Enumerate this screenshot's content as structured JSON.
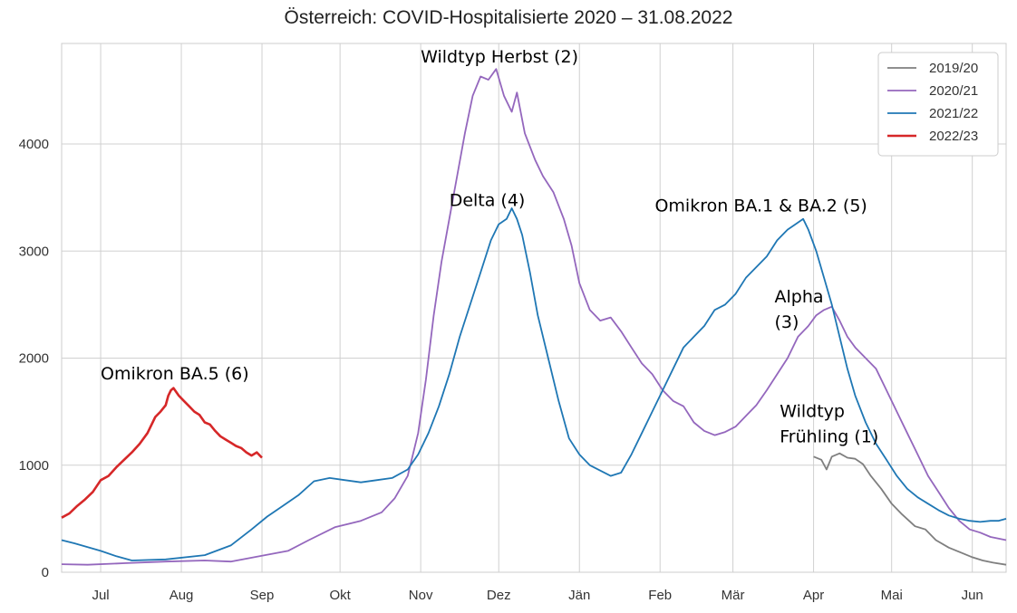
{
  "chart_data": {
    "type": "line",
    "title": "Österreich: COVID-Hospitalisierte 2020 – 31.08.2022",
    "xlabel": "",
    "ylabel": "",
    "x_domain_day": [
      -15,
      348
    ],
    "ylim": [
      0,
      5000
    ],
    "y_ticks": [
      0,
      1000,
      2000,
      3000,
      4000
    ],
    "x_ticks": [
      {
        "label": "Jul",
        "day": 0
      },
      {
        "label": "Aug",
        "day": 31
      },
      {
        "label": "Sep",
        "day": 62
      },
      {
        "label": "Okt",
        "day": 92
      },
      {
        "label": "Nov",
        "day": 123
      },
      {
        "label": "Dez",
        "day": 153
      },
      {
        "label": "Jän",
        "day": 184
      },
      {
        "label": "Feb",
        "day": 215
      },
      {
        "label": "Mär",
        "day": 243
      },
      {
        "label": "Apr",
        "day": 274
      },
      {
        "label": "Mai",
        "day": 304
      },
      {
        "label": "Jun",
        "day": 335
      }
    ],
    "grid": true,
    "legend_position": "top-right",
    "series": [
      {
        "name": "2019/20",
        "color": "#7f7f7f",
        "points": [
          [
            274,
            1080
          ],
          [
            277,
            1050
          ],
          [
            279,
            960
          ],
          [
            281,
            1080
          ],
          [
            284,
            1110
          ],
          [
            287,
            1070
          ],
          [
            290,
            1060
          ],
          [
            293,
            1010
          ],
          [
            296,
            900
          ],
          [
            300,
            780
          ],
          [
            304,
            640
          ],
          [
            308,
            540
          ],
          [
            313,
            430
          ],
          [
            317,
            400
          ],
          [
            321,
            300
          ],
          [
            326,
            230
          ],
          [
            331,
            180
          ],
          [
            335,
            140
          ],
          [
            339,
            110
          ],
          [
            343,
            90
          ],
          [
            348,
            70
          ]
        ]
      },
      {
        "name": "2020/21",
        "color": "#9467bd",
        "points": [
          [
            -15,
            75
          ],
          [
            -5,
            70
          ],
          [
            10,
            85
          ],
          [
            25,
            100
          ],
          [
            40,
            110
          ],
          [
            50,
            100
          ],
          [
            62,
            155
          ],
          [
            72,
            200
          ],
          [
            80,
            300
          ],
          [
            90,
            420
          ],
          [
            100,
            480
          ],
          [
            108,
            560
          ],
          [
            113,
            690
          ],
          [
            118,
            900
          ],
          [
            122,
            1300
          ],
          [
            125,
            1800
          ],
          [
            128,
            2400
          ],
          [
            131,
            2900
          ],
          [
            134,
            3300
          ],
          [
            137,
            3700
          ],
          [
            140,
            4100
          ],
          [
            143,
            4450
          ],
          [
            146,
            4630
          ],
          [
            149,
            4600
          ],
          [
            152,
            4700
          ],
          [
            155,
            4450
          ],
          [
            158,
            4300
          ],
          [
            160,
            4480
          ],
          [
            163,
            4100
          ],
          [
            167,
            3850
          ],
          [
            170,
            3700
          ],
          [
            174,
            3550
          ],
          [
            178,
            3300
          ],
          [
            181,
            3050
          ],
          [
            184,
            2700
          ],
          [
            188,
            2450
          ],
          [
            192,
            2350
          ],
          [
            196,
            2380
          ],
          [
            200,
            2250
          ],
          [
            204,
            2100
          ],
          [
            208,
            1950
          ],
          [
            212,
            1850
          ],
          [
            216,
            1700
          ],
          [
            220,
            1600
          ],
          [
            224,
            1550
          ],
          [
            228,
            1400
          ],
          [
            232,
            1320
          ],
          [
            236,
            1280
          ],
          [
            240,
            1310
          ],
          [
            244,
            1360
          ],
          [
            248,
            1460
          ],
          [
            252,
            1560
          ],
          [
            256,
            1700
          ],
          [
            260,
            1850
          ],
          [
            264,
            2000
          ],
          [
            268,
            2200
          ],
          [
            272,
            2300
          ],
          [
            275,
            2400
          ],
          [
            278,
            2450
          ],
          [
            281,
            2480
          ],
          [
            284,
            2350
          ],
          [
            287,
            2200
          ],
          [
            290,
            2100
          ],
          [
            294,
            2000
          ],
          [
            298,
            1900
          ],
          [
            302,
            1700
          ],
          [
            306,
            1500
          ],
          [
            310,
            1300
          ],
          [
            314,
            1100
          ],
          [
            318,
            900
          ],
          [
            322,
            750
          ],
          [
            326,
            600
          ],
          [
            330,
            480
          ],
          [
            334,
            400
          ],
          [
            338,
            370
          ],
          [
            342,
            330
          ],
          [
            348,
            300
          ]
        ]
      },
      {
        "name": "2021/22",
        "color": "#1f77b4",
        "points": [
          [
            -15,
            300
          ],
          [
            -10,
            270
          ],
          [
            0,
            200
          ],
          [
            6,
            150
          ],
          [
            12,
            110
          ],
          [
            25,
            120
          ],
          [
            40,
            160
          ],
          [
            50,
            250
          ],
          [
            58,
            400
          ],
          [
            64,
            520
          ],
          [
            70,
            620
          ],
          [
            76,
            720
          ],
          [
            82,
            850
          ],
          [
            88,
            880
          ],
          [
            94,
            860
          ],
          [
            100,
            840
          ],
          [
            106,
            860
          ],
          [
            112,
            880
          ],
          [
            118,
            960
          ],
          [
            122,
            1100
          ],
          [
            126,
            1300
          ],
          [
            130,
            1550
          ],
          [
            134,
            1850
          ],
          [
            138,
            2200
          ],
          [
            142,
            2500
          ],
          [
            146,
            2800
          ],
          [
            150,
            3100
          ],
          [
            153,
            3250
          ],
          [
            156,
            3300
          ],
          [
            158,
            3400
          ],
          [
            160,
            3300
          ],
          [
            162,
            3150
          ],
          [
            165,
            2800
          ],
          [
            168,
            2400
          ],
          [
            172,
            2000
          ],
          [
            176,
            1600
          ],
          [
            180,
            1250
          ],
          [
            184,
            1100
          ],
          [
            188,
            1000
          ],
          [
            192,
            950
          ],
          [
            196,
            900
          ],
          [
            200,
            930
          ],
          [
            204,
            1100
          ],
          [
            208,
            1300
          ],
          [
            212,
            1500
          ],
          [
            216,
            1700
          ],
          [
            220,
            1900
          ],
          [
            224,
            2100
          ],
          [
            228,
            2200
          ],
          [
            232,
            2300
          ],
          [
            236,
            2450
          ],
          [
            240,
            2500
          ],
          [
            244,
            2600
          ],
          [
            248,
            2750
          ],
          [
            252,
            2850
          ],
          [
            256,
            2950
          ],
          [
            260,
            3100
          ],
          [
            264,
            3200
          ],
          [
            267,
            3250
          ],
          [
            270,
            3300
          ],
          [
            272,
            3200
          ],
          [
            275,
            3000
          ],
          [
            278,
            2750
          ],
          [
            281,
            2500
          ],
          [
            284,
            2200
          ],
          [
            287,
            1900
          ],
          [
            290,
            1650
          ],
          [
            294,
            1400
          ],
          [
            298,
            1200
          ],
          [
            302,
            1050
          ],
          [
            306,
            900
          ],
          [
            310,
            780
          ],
          [
            314,
            700
          ],
          [
            318,
            640
          ],
          [
            322,
            580
          ],
          [
            326,
            530
          ],
          [
            330,
            500
          ],
          [
            334,
            480
          ],
          [
            338,
            470
          ],
          [
            342,
            480
          ],
          [
            345,
            480
          ],
          [
            348,
            500
          ]
        ]
      },
      {
        "name": "2022/23",
        "color": "#d62728",
        "points": [
          [
            -15,
            510
          ],
          [
            -12,
            550
          ],
          [
            -9,
            620
          ],
          [
            -6,
            680
          ],
          [
            -3,
            750
          ],
          [
            0,
            860
          ],
          [
            3,
            900
          ],
          [
            6,
            980
          ],
          [
            9,
            1050
          ],
          [
            12,
            1120
          ],
          [
            15,
            1200
          ],
          [
            18,
            1300
          ],
          [
            21,
            1450
          ],
          [
            23,
            1500
          ],
          [
            25,
            1560
          ],
          [
            26,
            1650
          ],
          [
            27,
            1700
          ],
          [
            28,
            1720
          ],
          [
            30,
            1650
          ],
          [
            32,
            1600
          ],
          [
            34,
            1550
          ],
          [
            36,
            1500
          ],
          [
            38,
            1470
          ],
          [
            40,
            1400
          ],
          [
            42,
            1380
          ],
          [
            44,
            1320
          ],
          [
            46,
            1270
          ],
          [
            48,
            1240
          ],
          [
            50,
            1210
          ],
          [
            52,
            1180
          ],
          [
            54,
            1160
          ],
          [
            56,
            1120
          ],
          [
            58,
            1090
          ],
          [
            60,
            1120
          ],
          [
            62,
            1070
          ]
        ]
      }
    ],
    "annotations": [
      {
        "lines": [
          "Omikron BA.5 (6)"
        ],
        "anchor_day": 0,
        "anchor_value": 1800
      },
      {
        "lines": [
          "Wildtyp Herbst (2)"
        ],
        "anchor_day": 123,
        "anchor_value": 4760
      },
      {
        "lines": [
          "Delta (4)"
        ],
        "anchor_day": 134,
        "anchor_value": 3420
      },
      {
        "lines": [
          "Omikron BA.1 & BA.2 (5)"
        ],
        "anchor_day": 213,
        "anchor_value": 3370
      },
      {
        "lines": [
          "Alpha",
          "(3)"
        ],
        "anchor_day": 259,
        "anchor_value": 2520
      },
      {
        "lines": [
          "Wildtyp",
          "Frühling (1)"
        ],
        "anchor_day": 261,
        "anchor_value": 1450
      }
    ]
  }
}
